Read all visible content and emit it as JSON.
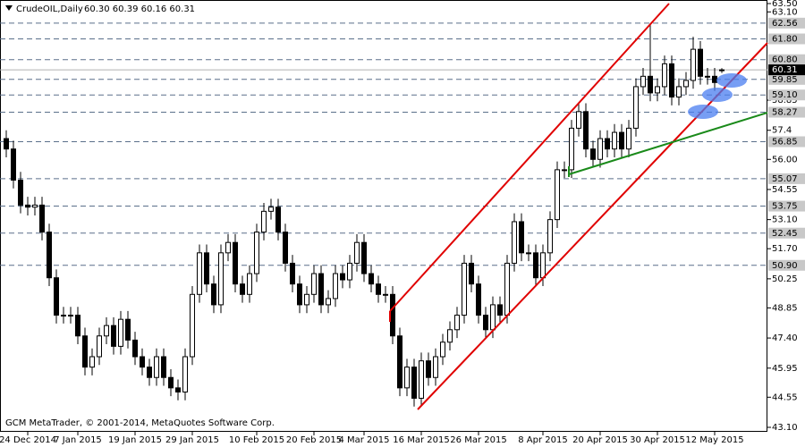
{
  "chart_data": {
    "type": "candlestick",
    "symbol": "CrudeOIL,Daily",
    "ohlc_text": "60.30 60.39 60.16 60.31",
    "footer": "GCM MetaTrader, © 2001-2014, MetaQuotes Software Corp.",
    "categories": [
      null,
      null,
      null,
      "24 Dec 2014",
      null,
      null,
      null,
      null,
      null,
      null,
      "7 Jan 2015",
      null,
      null,
      null,
      null,
      null,
      null,
      null,
      "19 Jan 2015",
      null,
      null,
      null,
      null,
      null,
      null,
      null,
      "29 Jan 2015",
      null,
      null,
      null,
      null,
      null,
      null,
      null,
      null,
      "10 Feb 2015",
      null,
      null,
      null,
      null,
      null,
      null,
      null,
      "20 Feb 2015",
      null,
      null,
      null,
      null,
      null,
      null,
      "4 Mar 2015",
      null,
      null,
      null,
      null,
      null,
      null,
      null,
      "16 Mar 2015",
      null,
      null,
      null,
      null,
      null,
      null,
      null,
      "26 Mar 2015",
      null,
      null,
      null,
      null,
      null,
      null,
      null,
      null,
      "8 Apr 2015",
      null,
      null,
      null,
      null,
      null,
      null,
      null,
      "20 Apr 2015",
      null,
      null,
      null,
      null,
      null,
      null,
      null,
      "30 Apr 2015",
      null,
      null,
      null,
      null,
      null,
      null,
      null,
      "12 May 2015",
      null
    ],
    "open": [
      57,
      56.5,
      55,
      53.8,
      53.7,
      53.8,
      52.5,
      50.3,
      48.5,
      48.5,
      48.5,
      47.5,
      46,
      46.5,
      47.5,
      48,
      47,
      48.3,
      47.3,
      46.5,
      46,
      45.5,
      46.5,
      45.5,
      45,
      44.8,
      46.5,
      49.5,
      51.5,
      50,
      49,
      51.5,
      52,
      50,
      49.5,
      50.5,
      52.5,
      53.5,
      53.7,
      52.5,
      51,
      50,
      49,
      49.5,
      50.5,
      49,
      49.3,
      50.5,
      50.2,
      51,
      52,
      50.5,
      50,
      49.5,
      49.5,
      47.5,
      45,
      46,
      44.5,
      46.3,
      45.5,
      46.5,
      47.2,
      47.8,
      48.5,
      51,
      50,
      48.5,
      47.8,
      49,
      48.5,
      51,
      53,
      51.5,
      51.5,
      50.3,
      51.5,
      53.1,
      55.5,
      55.5,
      57.5,
      58.3,
      56.5,
      56,
      57,
      56.5,
      57.3,
      56.5,
      57.5,
      59.5,
      60,
      59.2,
      59.5,
      60.6,
      59,
      59.5,
      59.8,
      61.3,
      60,
      60,
      60.3
    ],
    "high": [
      57.4,
      56.9,
      55.4,
      54.2,
      54.2,
      54.2,
      52.9,
      50.7,
      48.9,
      48.9,
      48.9,
      47.9,
      46.9,
      47.9,
      48.4,
      48.4,
      48.7,
      48.7,
      47.7,
      46.9,
      46.4,
      46.9,
      46.9,
      45.9,
      45.4,
      46.9,
      49.9,
      51.9,
      51.9,
      50.4,
      51.9,
      52.4,
      52.4,
      50.4,
      50.9,
      52.9,
      53.9,
      54.1,
      54.1,
      52.9,
      51.4,
      50.4,
      49.9,
      50.9,
      50.9,
      49.7,
      50.9,
      50.9,
      51.4,
      52.4,
      52.4,
      50.9,
      50.4,
      49.9,
      49.9,
      47.9,
      46.4,
      46.4,
      46.7,
      46.7,
      46.9,
      47.6,
      48.2,
      48.9,
      51.4,
      51.4,
      50.4,
      48.9,
      49.4,
      49.4,
      51.4,
      53.4,
      53.4,
      51.9,
      51.9,
      51.9,
      53.5,
      55.9,
      55.9,
      57.9,
      58.7,
      58.7,
      56.9,
      57.4,
      57.4,
      57.7,
      57.7,
      57.9,
      59.9,
      60.4,
      62.5,
      59.9,
      61,
      61,
      59.9,
      60.2,
      61.9,
      61.7,
      60.4,
      60.4,
      60.39
    ],
    "low": [
      56.1,
      54.6,
      53.4,
      53.3,
      53.3,
      52.1,
      49.9,
      48.1,
      48.1,
      48.1,
      47.1,
      45.6,
      45.6,
      46.1,
      47.1,
      46.6,
      46.6,
      46.9,
      46.1,
      45.6,
      45.1,
      45.1,
      45.1,
      44.6,
      44.4,
      44.4,
      46.1,
      49.1,
      49.6,
      48.6,
      48.6,
      51.1,
      49.6,
      49.1,
      49.1,
      50.1,
      52.1,
      53.1,
      52.1,
      50.6,
      49.6,
      48.6,
      48.6,
      49.1,
      48.6,
      48.6,
      48.9,
      49.8,
      49.8,
      50.6,
      50.1,
      49.6,
      49.1,
      49.1,
      47.1,
      44.6,
      44.6,
      44.1,
      44.1,
      45.1,
      45.1,
      46.1,
      46.8,
      47.4,
      48.1,
      49.6,
      48.1,
      47.4,
      47.4,
      48.1,
      48.1,
      50.6,
      51.1,
      51.1,
      49.9,
      49.9,
      51.1,
      52.7,
      55.1,
      55.1,
      57.1,
      56.1,
      55.6,
      55.6,
      56.1,
      56.1,
      56.1,
      56.1,
      57.1,
      59.1,
      58.8,
      58.8,
      59.1,
      58.6,
      58.6,
      59.1,
      59.4,
      59.6,
      59.6,
      59.3,
      60.16
    ],
    "close": [
      56.5,
      55,
      53.8,
      53.7,
      53.8,
      52.5,
      50.3,
      48.5,
      48.5,
      48.5,
      47.5,
      46,
      46.5,
      47.5,
      48,
      47,
      48.3,
      47.3,
      46.5,
      46,
      45.5,
      46.5,
      45.5,
      45,
      44.8,
      46.5,
      49.5,
      51.5,
      50,
      49,
      51.5,
      52,
      50,
      49.5,
      50.5,
      52.5,
      53.5,
      53.7,
      52.5,
      51,
      50,
      49,
      49.5,
      50.5,
      49,
      49.3,
      50.5,
      50.2,
      51,
      52,
      50.5,
      50,
      49.5,
      49.5,
      47.5,
      45,
      46,
      44.5,
      46.3,
      45.5,
      46.5,
      47.2,
      47.8,
      48.5,
      51,
      50,
      48.5,
      47.8,
      49,
      48.5,
      51,
      53,
      51.5,
      51.5,
      50.3,
      51.5,
      53.1,
      55.5,
      55.5,
      57.5,
      58.3,
      56.5,
      56,
      57,
      56.5,
      57.3,
      56.5,
      57.5,
      59.5,
      60,
      59.2,
      59.5,
      60.6,
      59,
      59.5,
      59.8,
      61.3,
      60,
      60,
      59.7,
      60.31
    ],
    "ylim": [
      43.1,
      63.5
    ],
    "yticks": [
      {
        "value": 63.5,
        "label": "63.50"
      },
      {
        "value": 63.1,
        "label": "63.10"
      },
      58.85,
      57.4,
      {
        "value": 56,
        "label": "56.00"
      },
      54.55,
      {
        "value": 53.1,
        "label": "53.10"
      },
      {
        "value": 51.7,
        "label": "51.70"
      },
      50.25,
      48.85,
      {
        "value": 47.4,
        "label": "47.40"
      },
      45.95,
      44.55,
      {
        "value": 43.1,
        "label": "43.10"
      }
    ],
    "levels": [
      62.56,
      {
        "value": 61.8,
        "label": "61.80"
      },
      {
        "value": 60.8,
        "label": "60.80"
      },
      59.85,
      {
        "value": 59.1,
        "label": "59.10"
      },
      58.27,
      56.85,
      55.07,
      53.75,
      52.45,
      {
        "value": 50.9,
        "label": "50.90"
      }
    ],
    "current_price": 60.31
  }
}
